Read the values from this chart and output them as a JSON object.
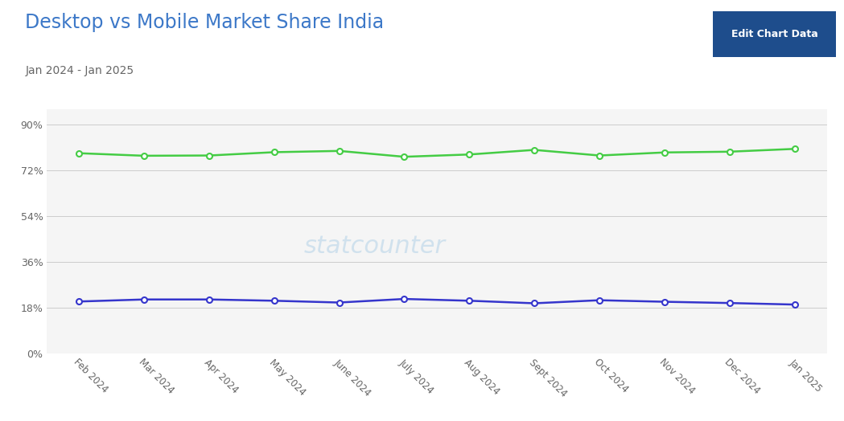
{
  "title": "Desktop vs Mobile Market Share India",
  "subtitle": "Jan 2024 - Jan 2025",
  "title_color": "#3c78c8",
  "subtitle_color": "#666666",
  "button_text": "Edit Chart Data",
  "button_bg": "#1e4d8c",
  "x_labels": [
    "Feb 2024",
    "Mar 2024",
    "Apr 2024",
    "May 2024",
    "June 2024",
    "July 2024",
    "Aug 2024",
    "Sept 2024",
    "Oct 2024",
    "Nov 2024",
    "Dec 2024",
    "Jan 2025"
  ],
  "mobile_values": [
    78.8,
    77.8,
    77.9,
    79.2,
    79.7,
    77.4,
    78.3,
    80.1,
    77.9,
    79.1,
    79.4,
    80.5
  ],
  "desktop_values": [
    20.5,
    21.3,
    21.3,
    20.8,
    20.1,
    21.5,
    20.8,
    19.8,
    21.0,
    20.4,
    19.9,
    19.3
  ],
  "mobile_color": "#44cc44",
  "desktop_color": "#3535cc",
  "y_ticks": [
    0,
    18,
    36,
    54,
    72,
    90
  ],
  "y_tick_labels": [
    "0%",
    "18%",
    "36%",
    "54%",
    "72%",
    "90%"
  ],
  "ylim": [
    0,
    96
  ],
  "background_color": "#ffffff",
  "plot_bg": "#f5f5f5",
  "grid_color": "#cccccc",
  "watermark": "statcounter"
}
